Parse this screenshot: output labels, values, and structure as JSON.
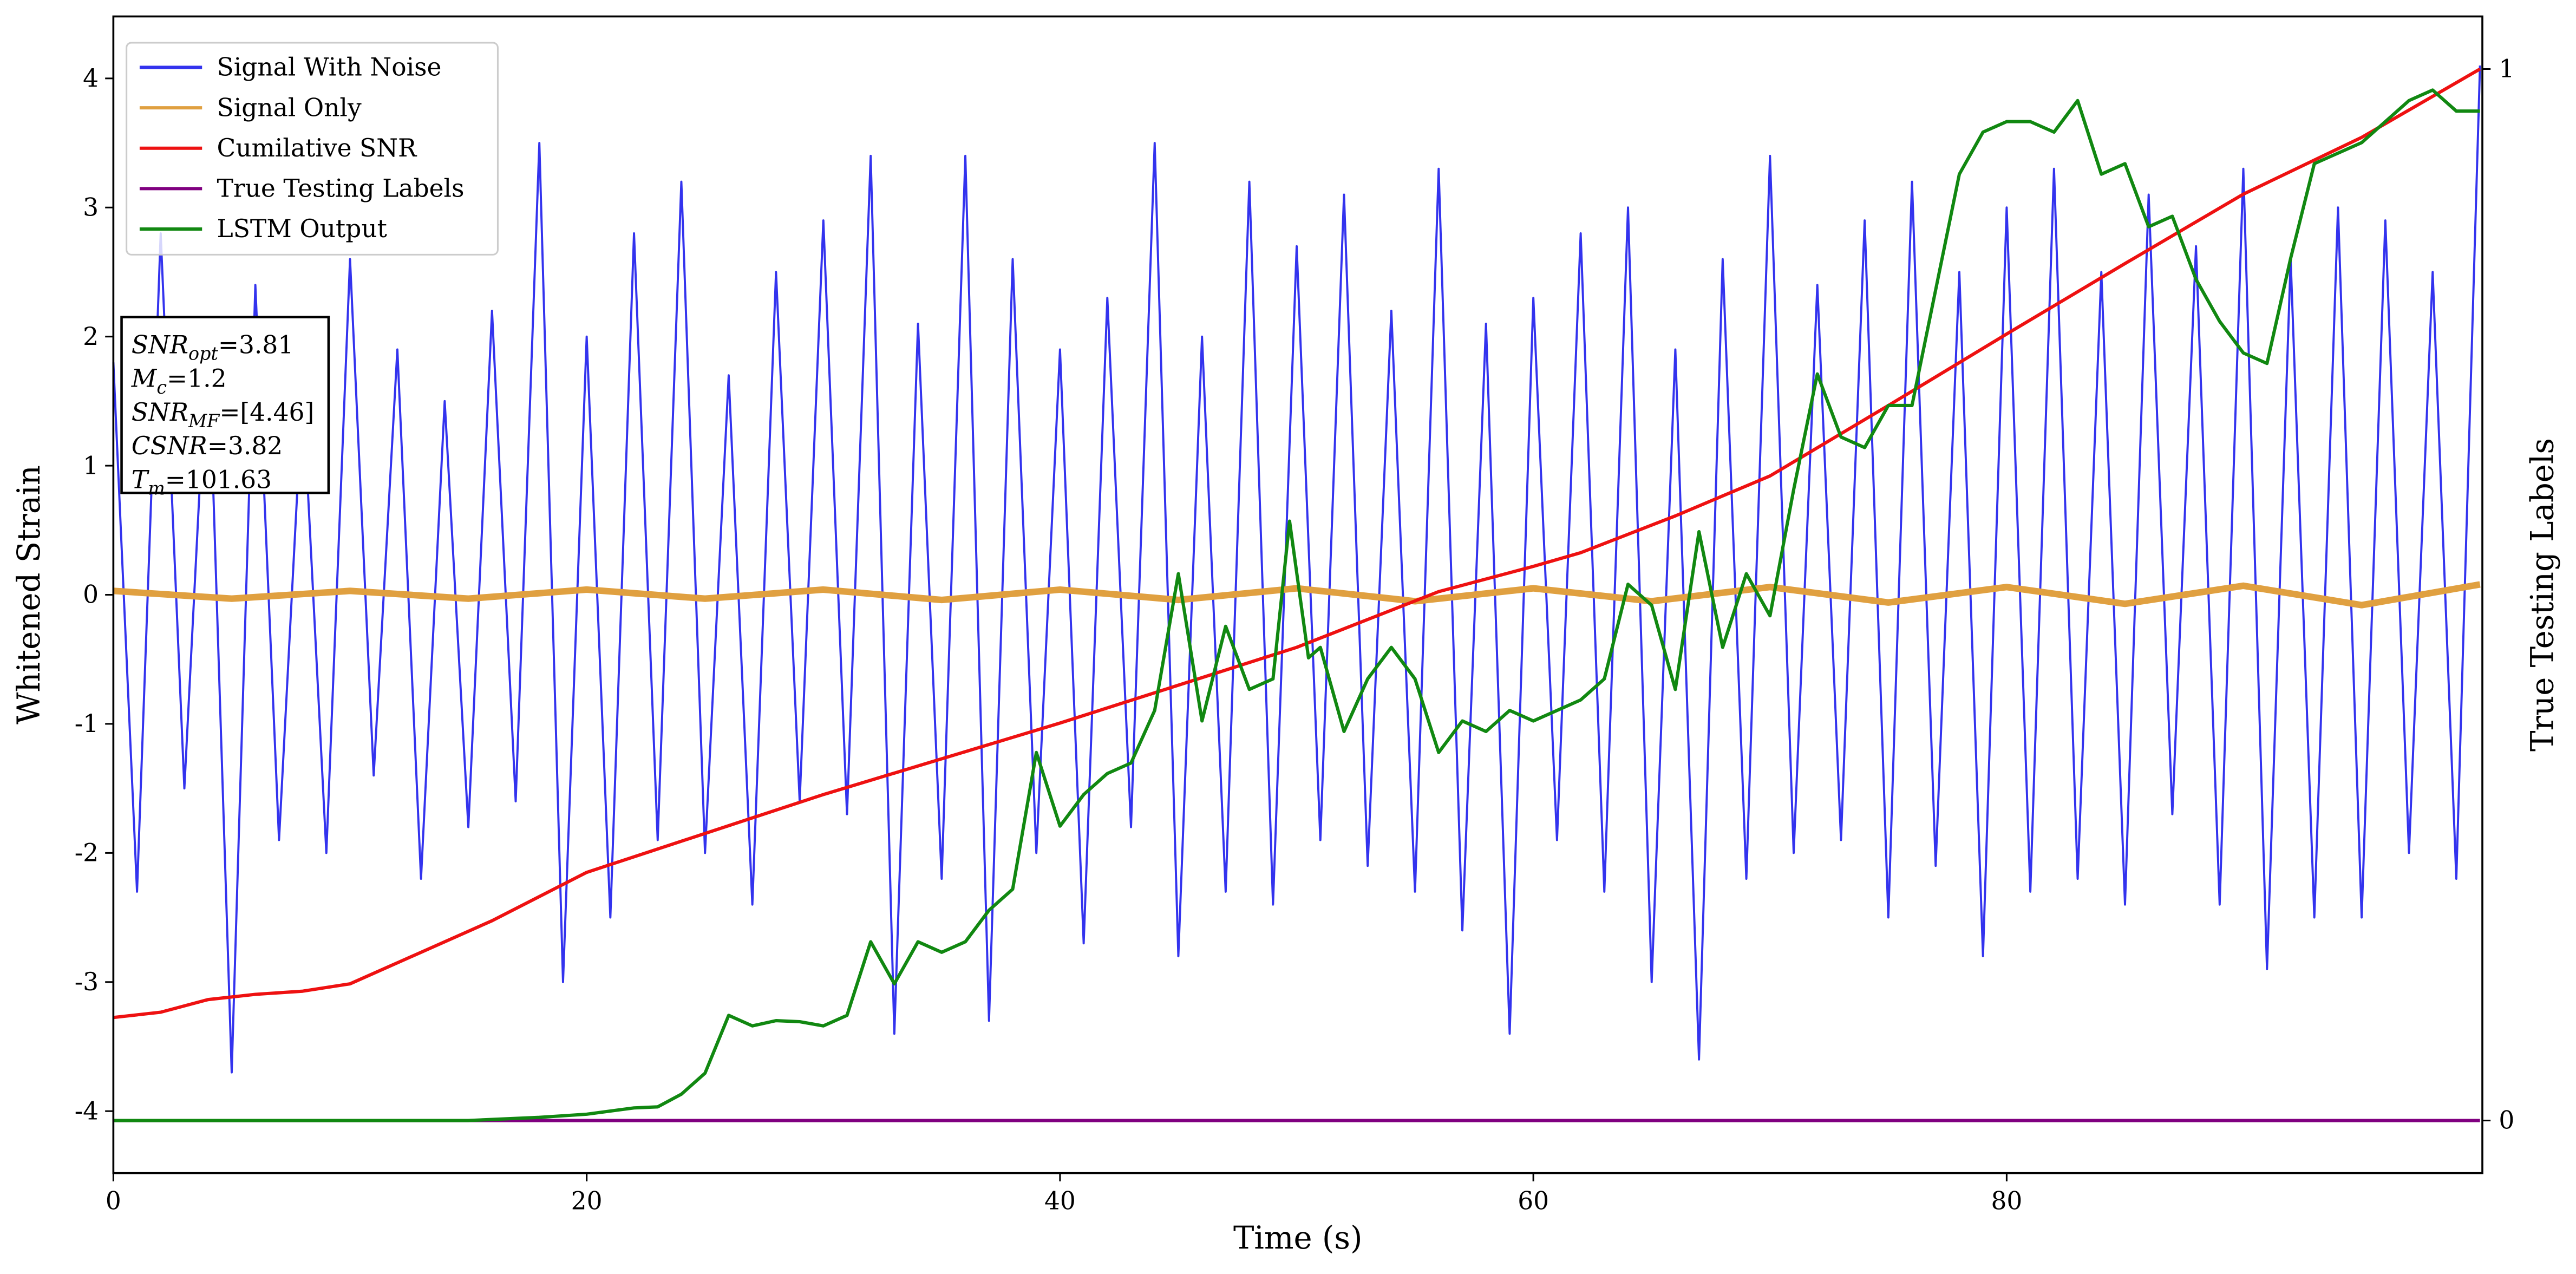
{
  "chart_data": {
    "type": "line",
    "xlabel": "Time (s)",
    "ylabel": "Whitened Strain",
    "y2label": "True Testing Labels",
    "xlim": [
      0,
      100.1
    ],
    "ylim": [
      -4.48,
      4.48
    ],
    "y2lim": [
      -0.05,
      1.05
    ],
    "xticks": [
      0,
      20,
      40,
      60,
      80
    ],
    "yticks": [
      -4,
      -3,
      -2,
      -1,
      0,
      1,
      2,
      3,
      4
    ],
    "y2ticks": [
      0,
      1
    ],
    "legend": "upper left",
    "series": [
      {
        "name": "Signal With Noise",
        "color": "#3333ee",
        "x": [
          0,
          1,
          2,
          3,
          4,
          5,
          6,
          7,
          8,
          9,
          10,
          11,
          12,
          13,
          14,
          15,
          16,
          17,
          18,
          19,
          20,
          21,
          22,
          23,
          24,
          25,
          26,
          27,
          28,
          29,
          30,
          31,
          32,
          33,
          34,
          35,
          36,
          37,
          38,
          39,
          40,
          41,
          42,
          43,
          44,
          45,
          46,
          47,
          48,
          49,
          50,
          51,
          52,
          53,
          54,
          55,
          56,
          57,
          58,
          59,
          60,
          61,
          62,
          63,
          64,
          65,
          66,
          67,
          68,
          69,
          70,
          71,
          72,
          73,
          74,
          75,
          76,
          77,
          78,
          79,
          80,
          81,
          82,
          83,
          84,
          85,
          86,
          87,
          88,
          89,
          90,
          91,
          92,
          93,
          94,
          95,
          96,
          97,
          98,
          99,
          100
        ],
        "values": [
          1.8,
          -2.3,
          2.8,
          -1.5,
          2.1,
          -3.7,
          2.4,
          -1.9,
          1.6,
          -2.0,
          2.6,
          -1.4,
          1.9,
          -2.2,
          1.5,
          -1.8,
          2.2,
          -1.6,
          3.5,
          -3.0,
          2.0,
          -2.5,
          2.8,
          -1.9,
          3.2,
          -2.0,
          1.7,
          -2.4,
          2.5,
          -1.6,
          2.9,
          -1.7,
          3.4,
          -3.4,
          2.1,
          -2.2,
          3.4,
          -3.3,
          2.6,
          -2.0,
          1.9,
          -2.7,
          2.3,
          -1.8,
          3.5,
          -2.8,
          2.0,
          -2.3,
          3.2,
          -2.4,
          2.7,
          -1.9,
          3.1,
          -2.1,
          2.2,
          -2.3,
          3.3,
          -2.6,
          2.1,
          -3.4,
          2.3,
          -1.9,
          2.8,
          -2.3,
          3.0,
          -3.0,
          1.9,
          -3.6,
          2.6,
          -2.2,
          3.4,
          -2.0,
          2.4,
          -1.9,
          2.9,
          -2.5,
          3.2,
          -2.1,
          2.5,
          -2.8,
          3.0,
          -2.3,
          3.3,
          -2.2,
          2.5,
          -2.4,
          3.1,
          -1.7,
          2.7,
          -2.4,
          3.3,
          -2.9,
          2.6,
          -2.5,
          3.0,
          -2.5,
          2.9,
          -2.0,
          2.5,
          -2.2,
          4.1
        ]
      },
      {
        "name": "Signal Only",
        "color": "#e0a040",
        "x": [
          0,
          5,
          10,
          15,
          20,
          25,
          30,
          35,
          40,
          45,
          50,
          55,
          60,
          65,
          70,
          75,
          80,
          85,
          90,
          95,
          100
        ],
        "values": [
          0.03,
          -0.03,
          0.03,
          -0.03,
          0.04,
          -0.03,
          0.04,
          -0.04,
          0.04,
          -0.04,
          0.05,
          -0.05,
          0.05,
          -0.05,
          0.06,
          -0.06,
          0.06,
          -0.07,
          0.07,
          -0.08,
          0.08
        ]
      },
      {
        "name": "Cumilative SNR",
        "color": "#ee1111",
        "axis": "y2",
        "x": [
          0,
          2,
          4,
          6,
          8,
          10,
          12,
          16,
          20,
          30,
          40,
          50,
          56,
          60,
          62,
          66,
          70,
          75,
          80,
          85,
          90,
          95,
          100
        ],
        "values": [
          0.098,
          0.103,
          0.115,
          0.12,
          0.123,
          0.13,
          0.15,
          0.19,
          0.236,
          0.31,
          0.378,
          0.45,
          0.503,
          0.527,
          0.54,
          0.575,
          0.613,
          0.68,
          0.748,
          0.815,
          0.881,
          0.935,
          1.0
        ]
      },
      {
        "name": "True Testing Labels",
        "color": "#800080",
        "axis": "y2",
        "x": [
          0,
          100
        ],
        "values": [
          0,
          0
        ]
      },
      {
        "name": "LSTM Output",
        "color": "#118811",
        "axis": "y2",
        "x": [
          0,
          15,
          18,
          20,
          22,
          23,
          24,
          25,
          26,
          27,
          28,
          29,
          30,
          31,
          32,
          33,
          34,
          35,
          36,
          37,
          38,
          39,
          40,
          41,
          42,
          43,
          44,
          45,
          46,
          47,
          48,
          49,
          49.7,
          50.5,
          51,
          52,
          53,
          54,
          55,
          56,
          57,
          58,
          59,
          60,
          62,
          63,
          64,
          65,
          66,
          67,
          68,
          69,
          70,
          71,
          72,
          73,
          74,
          75,
          76,
          77,
          78,
          79,
          80,
          81,
          82,
          83,
          84,
          85,
          86,
          87,
          88,
          89,
          90,
          91,
          92,
          93,
          94,
          95,
          96,
          97,
          98,
          99,
          100
        ],
        "values": [
          0,
          0,
          0.003,
          0.006,
          0.012,
          0.013,
          0.025,
          0.045,
          0.1,
          0.09,
          0.095,
          0.094,
          0.09,
          0.1,
          0.17,
          0.13,
          0.17,
          0.16,
          0.17,
          0.2,
          0.22,
          0.35,
          0.28,
          0.31,
          0.33,
          0.34,
          0.39,
          0.52,
          0.38,
          0.47,
          0.41,
          0.42,
          0.57,
          0.44,
          0.45,
          0.37,
          0.42,
          0.45,
          0.42,
          0.35,
          0.38,
          0.37,
          0.39,
          0.38,
          0.4,
          0.42,
          0.51,
          0.49,
          0.41,
          0.56,
          0.45,
          0.52,
          0.48,
          0.6,
          0.71,
          0.65,
          0.64,
          0.68,
          0.68,
          0.79,
          0.9,
          0.94,
          0.95,
          0.95,
          0.94,
          0.97,
          0.9,
          0.91,
          0.85,
          0.86,
          0.8,
          0.76,
          0.73,
          0.72,
          0.82,
          0.91,
          0.92,
          0.93,
          0.95,
          0.97,
          0.98,
          0.96,
          0.96
        ]
      }
    ],
    "annotations": [
      {
        "symbol": "SNR",
        "subscript": "opt",
        "text": "=3.81"
      },
      {
        "symbol": "M",
        "subscript": "c",
        "text": "=1.2"
      },
      {
        "symbol": "SNR",
        "subscript": "MF",
        "text": "=[4.46]"
      },
      {
        "symbol": "CSNR",
        "text": "=3.82"
      },
      {
        "symbol": "T",
        "subscript": "m",
        "text": "=101.63"
      }
    ]
  }
}
